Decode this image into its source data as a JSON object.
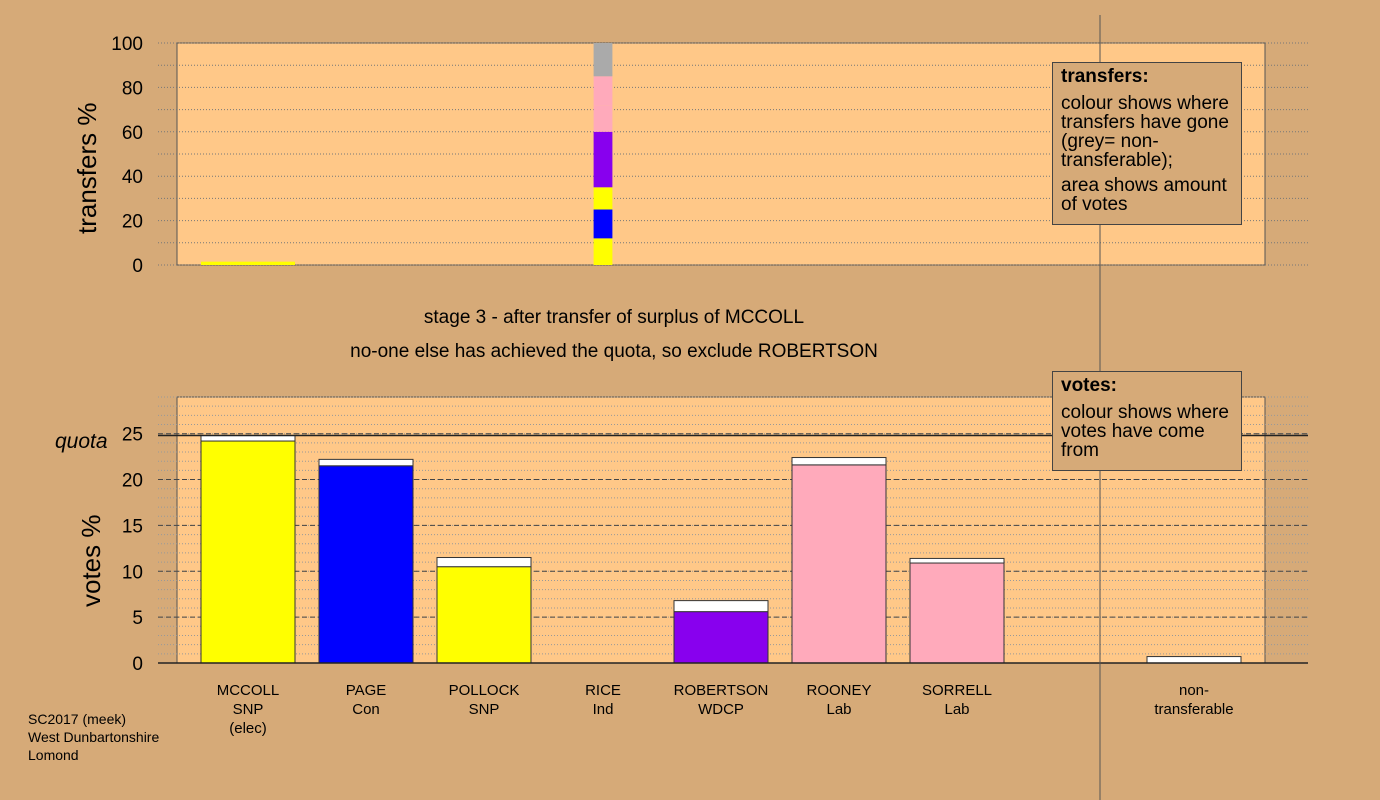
{
  "stage": {
    "title": "stage 3 - after transfer of surplus of MCCOLL",
    "subtitle": "no-one else has achieved the quota, so exclude ROBERTSON"
  },
  "legends": {
    "transfers": {
      "title": "transfers:",
      "line1": "colour shows where transfers have gone (grey= non-transferable);",
      "line2": "area shows amount of votes"
    },
    "votes": {
      "title": "votes:",
      "line1": "colour shows where votes have come from"
    }
  },
  "footer": {
    "line1": "SC2017 (meek)",
    "line2": "West Dunbartonshire",
    "line3": "Lomond"
  },
  "colors": {
    "background": "#d6aa78",
    "plot_area": "#ffc888",
    "SNP": "#ffff00",
    "Con": "#0000ff",
    "WDCP": "#8800ee",
    "Lab": "#ffaabb",
    "Ind": "#808080",
    "non_transferable": "#aaaaaa",
    "transferred_in": "#ffffff"
  },
  "candidates": [
    {
      "name": "MCCOLL",
      "party": "SNP",
      "note": "(elec)"
    },
    {
      "name": "PAGE",
      "party": "Con",
      "note": ""
    },
    {
      "name": "POLLOCK",
      "party": "SNP",
      "note": ""
    },
    {
      "name": "RICE",
      "party": "Ind",
      "note": ""
    },
    {
      "name": "ROBERTSON",
      "party": "WDCP",
      "note": ""
    },
    {
      "name": "ROONEY",
      "party": "Lab",
      "note": ""
    },
    {
      "name": "SORRELL",
      "party": "Lab",
      "note": ""
    },
    {
      "name": "non-",
      "party": "transferable",
      "note": ""
    }
  ],
  "chart_data": [
    {
      "type": "bar",
      "ylabel": "transfers %",
      "ylim": [
        0,
        100
      ],
      "yticks": [
        0,
        20,
        40,
        60,
        80,
        100
      ],
      "categories": [
        "MCCOLL",
        "PAGE",
        "POLLOCK",
        "RICE",
        "ROBERTSON",
        "ROONEY",
        "SORRELL",
        "non-transferable"
      ],
      "bars": [
        {
          "category": "MCCOLL",
          "width_fraction": 1.0,
          "segments": [
            {
              "to": "MCCOLL",
              "color": "#ffff00",
              "value": 1.5
            }
          ]
        },
        {
          "category": "RICE",
          "width_fraction": 0.2,
          "segments": [
            {
              "to": "MCCOLL",
              "color": "#ffff00",
              "value": 12
            },
            {
              "to": "PAGE",
              "color": "#0000ff",
              "value": 13
            },
            {
              "to": "POLLOCK",
              "color": "#ffff00",
              "value": 10
            },
            {
              "to": "ROBERTSON",
              "color": "#8800ee",
              "value": 25
            },
            {
              "to": "ROONEY",
              "color": "#ffaabb",
              "value": 12
            },
            {
              "to": "SORRELL",
              "color": "#ffaabb",
              "value": 13
            },
            {
              "to": "non-transferable",
              "color": "#aaaaaa",
              "value": 15
            }
          ]
        }
      ]
    },
    {
      "type": "bar",
      "ylabel": "votes %",
      "ylim": [
        0,
        29
      ],
      "yticks": [
        0,
        5,
        10,
        15,
        20,
        25
      ],
      "quota": 24.8,
      "quota_label": "quota",
      "categories": [
        "MCCOLL",
        "PAGE",
        "POLLOCK",
        "RICE",
        "ROBERTSON",
        "ROONEY",
        "SORRELL",
        "non-transferable"
      ],
      "bars": [
        {
          "category": "MCCOLL",
          "base": 24.2,
          "transferred": 0.6,
          "color": "#ffff00"
        },
        {
          "category": "PAGE",
          "base": 21.5,
          "transferred": 0.7,
          "color": "#0000ff"
        },
        {
          "category": "POLLOCK",
          "base": 10.5,
          "transferred": 1.0,
          "color": "#ffff00"
        },
        {
          "category": "RICE",
          "base": 0.0,
          "transferred": 0.0,
          "color": "#808080"
        },
        {
          "category": "ROBERTSON",
          "base": 5.6,
          "transferred": 1.2,
          "color": "#8800ee"
        },
        {
          "category": "ROONEY",
          "base": 21.6,
          "transferred": 0.8,
          "color": "#ffaabb"
        },
        {
          "category": "SORRELL",
          "base": 10.9,
          "transferred": 0.5,
          "color": "#ffaabb"
        },
        {
          "category": "non-transferable",
          "base": 0.0,
          "transferred": 0.7,
          "color": "#ffffff"
        }
      ]
    }
  ]
}
